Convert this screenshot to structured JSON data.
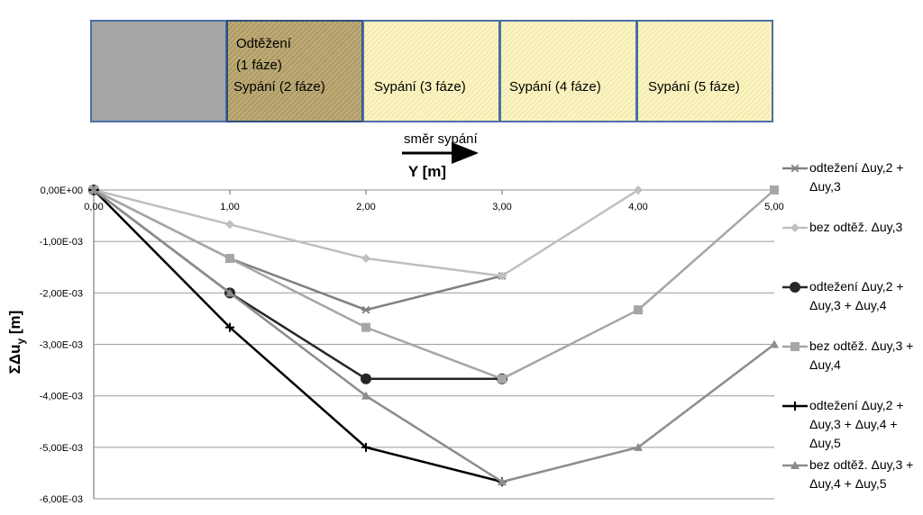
{
  "phases": [
    {
      "label": "",
      "style": "grey"
    },
    {
      "label": "Odtěžení (1 fáze) Sypání (2 fáze)",
      "lines": [
        "Odtěžení",
        "(1 fáze)",
        "Sypání (2 fáze)"
      ],
      "style": "dark"
    },
    {
      "label": "Sypání (3 fáze)",
      "style": "light"
    },
    {
      "label": "Sypání (4 fáze)",
      "style": "light"
    },
    {
      "label": "Sypání (5 fáze)",
      "style": "light"
    }
  ],
  "direction_label": "směr sypání",
  "chart_data": {
    "type": "line",
    "xlabel": "Y [m]",
    "ylabel": "ΣΔuy [m]",
    "ylabel_main": "ΣΔu",
    "ylabel_sub": "y",
    "ylabel_suffix": " [m]",
    "xlim": [
      0,
      5
    ],
    "ylim": [
      -0.006,
      0
    ],
    "x_ticks": [
      0,
      1,
      2,
      3,
      4,
      5
    ],
    "x_tick_labels": [
      "0,00",
      "1,00",
      "2,00",
      "3,00",
      "4,00",
      "5,00"
    ],
    "y_ticks": [
      0,
      -0.001,
      -0.002,
      -0.003,
      -0.004,
      -0.005,
      -0.006
    ],
    "y_tick_labels": [
      "0,00E+00",
      "-1,00E-03",
      "-2,00E-03",
      "-3,00E-03",
      "-4,00E-03",
      "-5,00E-03",
      "-6,00E-03"
    ],
    "grid": "horizontal",
    "legend_position": "right",
    "series": [
      {
        "name": "odtežení Δuy,2 + Δuy,3",
        "color": "#808080",
        "marker": "asterisk",
        "x": [
          0,
          1,
          2,
          3
        ],
        "values": [
          0,
          -0.00133,
          -0.00233,
          -0.00167
        ]
      },
      {
        "name": "bez odtěž. Δuy,3",
        "color": "#bfbfbf",
        "marker": "diamond",
        "x": [
          0,
          1,
          2,
          3,
          4
        ],
        "values": [
          0,
          -0.00067,
          -0.00133,
          -0.00167,
          0
        ]
      },
      {
        "name": "odtežení Δuy,2 + Δuy,3 + Δuy,4",
        "color": "#262626",
        "marker": "circle",
        "x": [
          0,
          1,
          2,
          3
        ],
        "values": [
          0,
          -0.002,
          -0.00367,
          -0.00367
        ]
      },
      {
        "name": "bez odtěž. Δuy,3 + Δuy,4",
        "color": "#a6a6a6",
        "marker": "square",
        "x": [
          0,
          1,
          2,
          3,
          4,
          5
        ],
        "values": [
          0,
          -0.00133,
          -0.00267,
          -0.00367,
          -0.00233,
          0
        ]
      },
      {
        "name": "odtežení Δuy,2 + Δuy,3 + Δuy,4 + Δuy,5",
        "color": "#000000",
        "marker": "plus",
        "x": [
          0,
          1,
          2,
          3
        ],
        "values": [
          0,
          -0.00267,
          -0.005,
          -0.00567
        ]
      },
      {
        "name": "bez odtěž. Δuy,3 + Δuy,4 + Δuy,5",
        "color": "#8c8c8c",
        "marker": "triangle",
        "x": [
          0,
          1,
          2,
          3,
          4,
          5
        ],
        "values": [
          0,
          -0.002,
          -0.004,
          -0.00567,
          -0.005,
          -0.003
        ]
      }
    ]
  },
  "legend_lines": [
    [
      "odtežení Δuy,2 +",
      "Δuy,3"
    ],
    [
      "bez odtěž. Δuy,3"
    ],
    [
      "odtežení Δuy,2 +",
      "Δuy,3 + Δuy,4"
    ],
    [
      "bez odtěž. Δuy,3 +",
      "Δuy,4"
    ],
    [
      "odtežení Δuy,2 +",
      "Δuy,3 + Δuy,4 +",
      "Δuy,5"
    ],
    [
      "bez odtěž. Δuy,3 +",
      "Δuy,4 + Δuy,5"
    ]
  ]
}
